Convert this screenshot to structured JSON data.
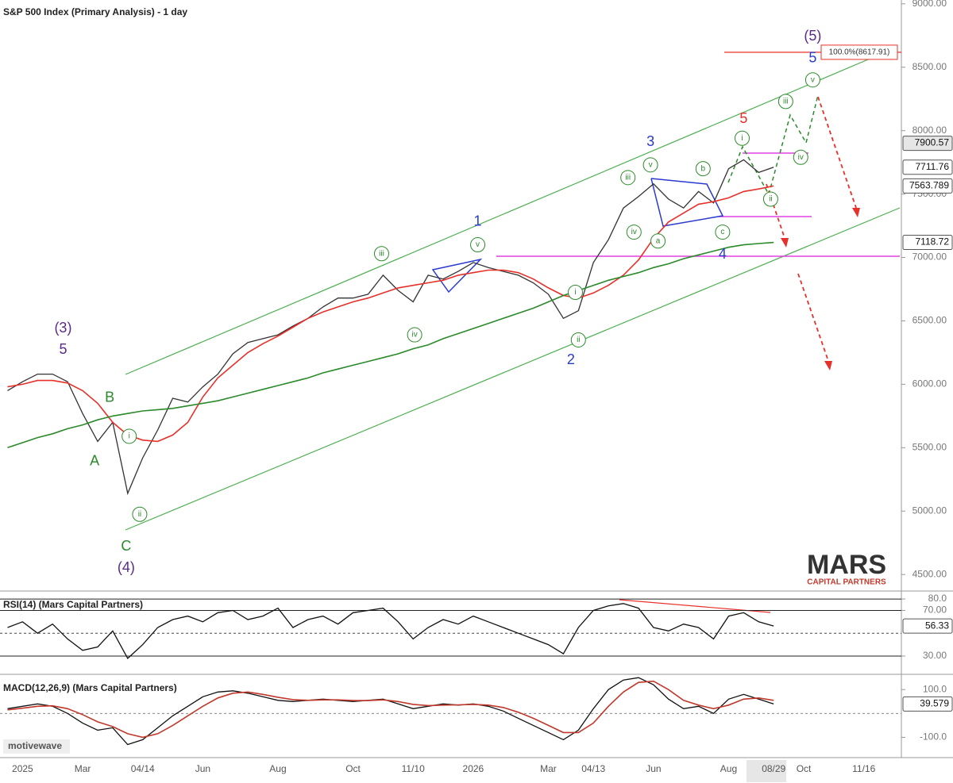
{
  "chart_data": [
    {
      "type": "line",
      "title": "S&P 500 Index (Primary Analysis) - 1 day",
      "categories": [
        null,
        "2025",
        null,
        null,
        null,
        "Mar",
        null,
        null,
        null,
        "04/14",
        null,
        null,
        null,
        "Jun",
        null,
        null,
        null,
        null,
        "Aug",
        null,
        null,
        null,
        null,
        "Oct",
        null,
        null,
        null,
        "11/10",
        null,
        null,
        null,
        "2026",
        null,
        null,
        null,
        null,
        "Mar",
        null,
        null,
        "04/13",
        null,
        null,
        null,
        "Jun",
        null,
        null,
        null,
        null,
        "Aug",
        null,
        null,
        "08/29",
        null,
        "Oct",
        null,
        null,
        null,
        "11/16",
        null,
        null
      ],
      "ylim": [
        4370,
        9030
      ],
      "yticks": [
        {
          "value": 4500,
          "label": "4500.00"
        },
        {
          "value": 5000,
          "label": "5000.00"
        },
        {
          "value": 5500,
          "label": "5500.00"
        },
        {
          "value": 6000,
          "label": "6000.00"
        },
        {
          "value": 6500,
          "label": "6500.00"
        },
        {
          "value": 7000,
          "label": "7000.00"
        },
        {
          "value": 7500,
          "label": "7500.00"
        },
        {
          "value": 8000,
          "label": "8000.00"
        },
        {
          "value": 8500,
          "label": "8500.00"
        },
        {
          "value": 9000,
          "label": "9000.00"
        }
      ],
      "series": [
        {
          "name": "Price",
          "color": "#333333",
          "values": [
            5950,
            6020,
            6080,
            6080,
            6020,
            5770,
            5550,
            5700,
            5140,
            5420,
            5640,
            5890,
            5860,
            5980,
            6080,
            6240,
            6330,
            6360,
            6390,
            6460,
            6520,
            6610,
            6680,
            6680,
            6710,
            6860,
            6740,
            6650,
            6860,
            6830,
            6890,
            6960,
            6920,
            6890,
            6860,
            6800,
            6710,
            6520,
            6580,
            6960,
            7140,
            7390,
            7480,
            7580,
            7460,
            7390,
            7520,
            7430,
            7700,
            7770,
            7670,
            7711.76,
            null,
            null,
            null,
            null,
            null,
            null,
            null,
            null
          ]
        },
        {
          "name": "MA50",
          "color": "#e8302a",
          "values": [
            5980,
            6000,
            6030,
            6030,
            6010,
            5950,
            5850,
            5700,
            5600,
            5560,
            5550,
            5600,
            5700,
            5900,
            6050,
            6150,
            6250,
            6320,
            6380,
            6450,
            6520,
            6570,
            6610,
            6650,
            6680,
            6720,
            6760,
            6780,
            6800,
            6820,
            6860,
            6880,
            6900,
            6900,
            6880,
            6830,
            6760,
            6700,
            6680,
            6720,
            6780,
            6860,
            6980,
            7150,
            7280,
            7350,
            7420,
            7440,
            7470,
            7520,
            7540,
            7563.789,
            null,
            null,
            null,
            null,
            null,
            null,
            null,
            null
          ]
        },
        {
          "name": "MA200",
          "color": "#2a8a2a",
          "values": [
            5500,
            5540,
            5580,
            5610,
            5650,
            5680,
            5720,
            5750,
            5770,
            5790,
            5800,
            5810,
            5830,
            5850,
            5870,
            5900,
            5930,
            5960,
            5990,
            6020,
            6050,
            6090,
            6120,
            6150,
            6180,
            6210,
            6240,
            6280,
            6310,
            6360,
            6400,
            6440,
            6480,
            6520,
            6560,
            6600,
            6650,
            6700,
            6740,
            6780,
            6820,
            6850,
            6880,
            6920,
            6950,
            6990,
            7020,
            7050,
            7080,
            7100,
            7110,
            7118.72,
            null,
            null,
            null,
            null,
            null,
            null,
            null,
            null
          ]
        }
      ],
      "markers": [
        {
          "value": 7900.57,
          "color": "#e6e6e6"
        },
        {
          "value": 7711.76,
          "color": "#ffffff"
        },
        {
          "value": 7563.789,
          "color": "#ffffff"
        },
        {
          "value": 7118.72,
          "color": "#ffffff"
        }
      ],
      "levels": [
        {
          "value": 8617.91,
          "label": "100.0%(8617.91)",
          "color": "#e8302a"
        }
      ],
      "annotations": [
        {
          "text": "(3)",
          "x": 3.7,
          "y": 6440,
          "color": "#5a2a8a"
        },
        {
          "text": "5",
          "x": 3.7,
          "y": 6270,
          "color": "#5a2a8a"
        },
        {
          "text": "B",
          "x": 6.8,
          "y": 5890,
          "color": "#2a8a2a"
        },
        {
          "text": "A",
          "x": 5.8,
          "y": 5390,
          "color": "#2a8a2a"
        },
        {
          "text": "C",
          "x": 7.9,
          "y": 4720,
          "color": "#2a8a2a"
        },
        {
          "text": "(4)",
          "x": 7.9,
          "y": 4550,
          "color": "#5a2a8a"
        },
        {
          "text": "1",
          "x": 31.3,
          "y": 7280,
          "color": "#2a3ad0"
        },
        {
          "text": "2",
          "x": 37.5,
          "y": 6190,
          "color": "#2a3ad0"
        },
        {
          "text": "3",
          "x": 42.8,
          "y": 7910,
          "color": "#2a3ad0"
        },
        {
          "text": "4",
          "x": 47.6,
          "y": 7020,
          "color": "#2a3ad0"
        },
        {
          "text": "5",
          "x": 49,
          "y": 8090,
          "color": "#e8302a"
        },
        {
          "text": "(5)",
          "x": 53.6,
          "y": 8740,
          "color": "#5a2a8a"
        },
        {
          "text": "5",
          "x": 53.6,
          "y": 8570,
          "color": "#2a3ad0"
        },
        {
          "text": "i",
          "x": 8.1,
          "y": 5590,
          "color": "#2a8a2a",
          "circled": true
        },
        {
          "text": "ii",
          "x": 8.8,
          "y": 4975,
          "color": "#2a8a2a",
          "circled": true
        },
        {
          "text": "iii",
          "x": 24.9,
          "y": 7030,
          "color": "#2a8a2a",
          "circled": true
        },
        {
          "text": "iv",
          "x": 27.1,
          "y": 6390,
          "color": "#2a8a2a",
          "circled": true
        },
        {
          "text": "v",
          "x": 31.3,
          "y": 7100,
          "color": "#2a8a2a",
          "circled": true
        },
        {
          "text": "i",
          "x": 37.8,
          "y": 6725,
          "color": "#2a8a2a",
          "circled": true
        },
        {
          "text": "ii",
          "x": 38,
          "y": 6350,
          "color": "#2a8a2a",
          "circled": true
        },
        {
          "text": "iii",
          "x": 41.3,
          "y": 7630,
          "color": "#2a8a2a",
          "circled": true
        },
        {
          "text": "iv",
          "x": 41.7,
          "y": 7200,
          "color": "#2a8a2a",
          "circled": true
        },
        {
          "text": "v",
          "x": 42.8,
          "y": 7730,
          "color": "#2a8a2a",
          "circled": true
        },
        {
          "text": "a",
          "x": 43.3,
          "y": 7130,
          "color": "#2a8a2a",
          "circled": true
        },
        {
          "text": "b",
          "x": 46.3,
          "y": 7700,
          "color": "#2a8a2a",
          "circled": true
        },
        {
          "text": "c",
          "x": 47.6,
          "y": 7200,
          "color": "#2a8a2a",
          "circled": true
        },
        {
          "text": "i",
          "x": 48.9,
          "y": 7940,
          "color": "#2a8a2a",
          "circled": true
        },
        {
          "text": "ii",
          "x": 50.8,
          "y": 7460,
          "color": "#2a8a2a",
          "circled": true
        },
        {
          "text": "iii",
          "x": 51.8,
          "y": 8230,
          "color": "#2a8a2a",
          "circled": true
        },
        {
          "text": "iv",
          "x": 52.8,
          "y": 7790,
          "color": "#2a8a2a",
          "circled": true
        },
        {
          "text": "v",
          "x": 53.6,
          "y": 8400,
          "color": "#2a8a2a",
          "circled": true
        }
      ],
      "logo": "MARS",
      "logo_subtitle": "CAPITAL PARTNERS"
    },
    {
      "type": "line",
      "title": "RSI(14) (Mars Capital Partners)",
      "ylim": [
        14,
        87
      ],
      "yticks": [
        {
          "value": 80,
          "label": "80.0"
        },
        {
          "value": 70,
          "label": "70.00"
        },
        {
          "value": 30,
          "label": "30.00"
        }
      ],
      "series": [
        {
          "name": "RSI",
          "color": "#111111",
          "values": [
            55,
            60,
            50,
            58,
            45,
            35,
            38,
            52,
            28,
            40,
            55,
            62,
            65,
            60,
            68,
            70,
            62,
            65,
            72,
            55,
            62,
            65,
            58,
            68,
            70,
            72,
            60,
            45,
            55,
            62,
            58,
            65,
            60,
            55,
            50,
            45,
            40,
            32,
            55,
            70,
            74,
            76,
            72,
            55,
            52,
            58,
            55,
            45,
            65,
            68,
            60,
            56.33,
            null,
            null,
            null,
            null,
            null,
            null,
            null,
            null
          ]
        }
      ],
      "markers": [
        {
          "value": 56.33,
          "color": "#ffffff"
        }
      ]
    },
    {
      "type": "line",
      "title": "MACD(12,26,9) (Mars Capital Partners)",
      "ylim": [
        -185,
        164
      ],
      "yticks": [
        {
          "value": 100,
          "label": "100.0"
        },
        {
          "value": -100,
          "label": "-100.0"
        }
      ],
      "series": [
        {
          "name": "MACD",
          "color": "#111111",
          "values": [
            20,
            30,
            40,
            30,
            0,
            -40,
            -70,
            -60,
            -130,
            -110,
            -60,
            -10,
            30,
            70,
            90,
            95,
            85,
            70,
            55,
            50,
            55,
            60,
            55,
            50,
            55,
            60,
            40,
            20,
            30,
            40,
            35,
            40,
            30,
            10,
            -20,
            -50,
            -80,
            -110,
            -70,
            20,
            100,
            140,
            150,
            120,
            60,
            20,
            30,
            0,
            60,
            80,
            60,
            39.579,
            null,
            null,
            null,
            null,
            null,
            null,
            null,
            null
          ]
        },
        {
          "name": "Signal",
          "color": "#c0392b",
          "values": [
            15,
            22,
            30,
            32,
            20,
            -5,
            -35,
            -55,
            -85,
            -100,
            -85,
            -50,
            -10,
            30,
            65,
            85,
            90,
            80,
            68,
            58,
            55,
            57,
            57,
            54,
            54,
            57,
            50,
            38,
            33,
            35,
            36,
            38,
            35,
            25,
            5,
            -20,
            -50,
            -80,
            -80,
            -40,
            30,
            90,
            130,
            135,
            100,
            55,
            35,
            20,
            35,
            60,
            65,
            55,
            null,
            null,
            null,
            null,
            null,
            null,
            null,
            null
          ]
        }
      ],
      "markers": [
        {
          "value": 39.579,
          "color": "#ffffff"
        }
      ],
      "watermark": "motivewave"
    }
  ]
}
